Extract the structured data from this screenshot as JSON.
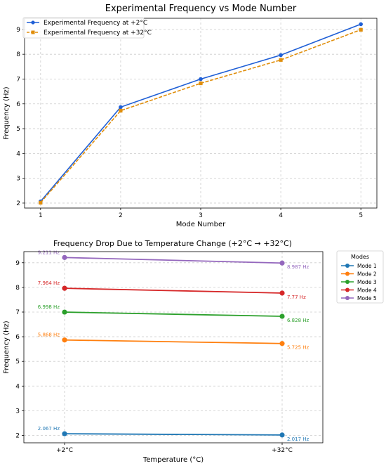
{
  "chart_data": [
    {
      "type": "line",
      "title": "Experimental Frequency vs Mode Number",
      "xlabel": "Mode Number",
      "ylabel": "Frequency (Hz)",
      "x": [
        1,
        2,
        3,
        4,
        5
      ],
      "xlim": [
        0.8,
        5.2
      ],
      "ylim": [
        1.8,
        9.45
      ],
      "yticks": [
        2,
        3,
        4,
        5,
        6,
        7,
        8,
        9
      ],
      "grid": true,
      "legend": "top-left",
      "series": [
        {
          "name": "Experimental Frequency at +2°C",
          "values": [
            2.067,
            5.868,
            6.998,
            7.964,
            9.211
          ],
          "color": "#1f5fd6",
          "marker": "circle",
          "linestyle": "solid"
        },
        {
          "name": "Experimental Frequency at +32°C",
          "values": [
            2.017,
            5.725,
            6.828,
            7.77,
            8.987
          ],
          "color": "#e08e0b",
          "marker": "square",
          "linestyle": "dashed"
        }
      ]
    },
    {
      "type": "line",
      "title": "Frequency Drop Due to Temperature Change (+2°C  →  +32°C)",
      "xlabel": "Temperature (°C)",
      "ylabel": "Frequency (Hz)",
      "categories": [
        "+2°C",
        "+32°C"
      ],
      "ylim": [
        1.7,
        9.45
      ],
      "yticks": [
        2,
        3,
        4,
        5,
        6,
        7,
        8,
        9
      ],
      "grid": true,
      "legend": "outside-right",
      "legend_title": "Modes",
      "series": [
        {
          "name": "Mode 1",
          "values": [
            2.067,
            2.017
          ],
          "labels": [
            "2.067 Hz",
            "2.017 Hz"
          ],
          "color": "#1f77b4"
        },
        {
          "name": "Mode 2",
          "values": [
            5.868,
            5.725
          ],
          "labels": [
            "5.868 Hz",
            "5.725 Hz"
          ],
          "color": "#ff7f0e"
        },
        {
          "name": "Mode 3",
          "values": [
            6.998,
            6.828
          ],
          "labels": [
            "6.998 Hz",
            "6.828 Hz"
          ],
          "color": "#2ca02c"
        },
        {
          "name": "Mode 4",
          "values": [
            7.964,
            7.77
          ],
          "labels": [
            "7.964 Hz",
            "7.77 Hz"
          ],
          "color": "#d62728"
        },
        {
          "name": "Mode 5",
          "values": [
            9.211,
            8.987
          ],
          "labels": [
            "9.211 Hz",
            "8.987 Hz"
          ],
          "color": "#9467bd"
        }
      ]
    }
  ]
}
